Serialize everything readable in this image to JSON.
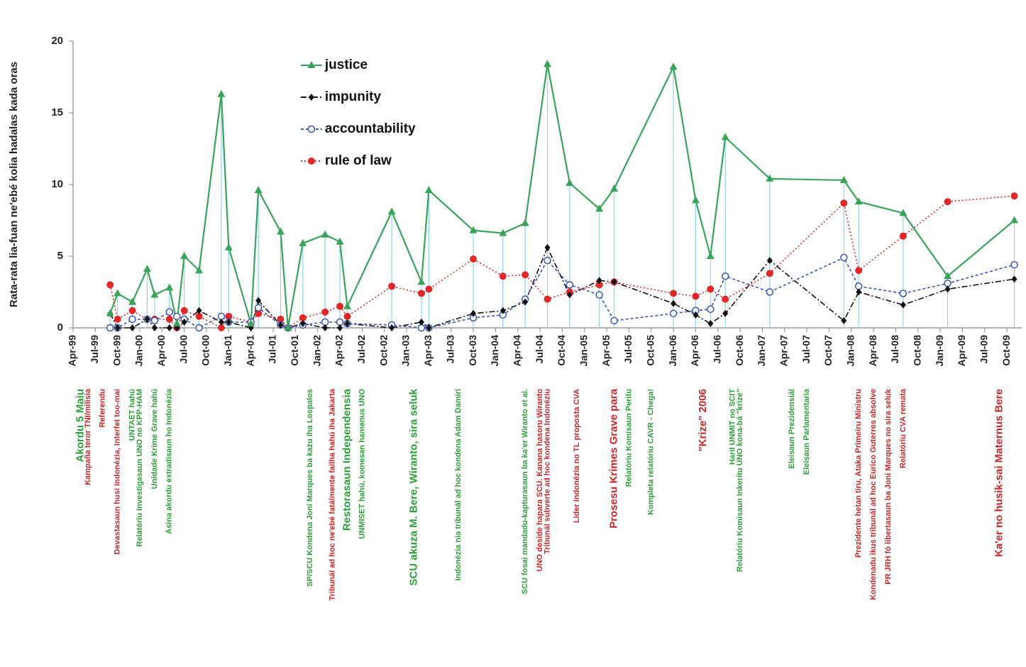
{
  "chart_data": {
    "type": "line",
    "y_label": "Rata-rata lia-fuan ne'ebé kolia hadalas kada oras",
    "x": [
      "Sep-99",
      "Oct-99",
      "Dec-99",
      "Feb-00",
      "Mar-00",
      "May-00",
      "Jun-00",
      "Jul-00",
      "Sep-00",
      "Dec-00",
      "Jan-01",
      "Apr-01",
      "May-01",
      "Aug-01",
      "Sep-01",
      "Nov-01",
      "Feb-02",
      "Apr-02",
      "May-02",
      "Nov-02",
      "Mar-03",
      "Apr-03",
      "Oct-03",
      "Feb-04",
      "May-04",
      "Aug-04",
      "Nov-04",
      "Mar-05",
      "May-05",
      "Jan-06",
      "Apr-06",
      "Jun-06",
      "Aug-06",
      "Feb-07",
      "Dec-07",
      "Feb-08",
      "Aug-08",
      "Feb-09",
      "Nov-09"
    ],
    "xlim": [
      "Apr-99",
      "Dec-09"
    ],
    "xticks": [
      "Apr-99",
      "Jul-99",
      "Oct-99",
      "Jan-00",
      "Apr-00",
      "Jul-00",
      "Oct-00",
      "Jan-01",
      "Apr-01",
      "Jul-01",
      "Oct-01",
      "Jan-02",
      "Apr-02",
      "Jul-02",
      "Oct-02",
      "Jan-03",
      "Apr-03",
      "Jul-03",
      "Oct-03",
      "Jan-04",
      "Apr-04",
      "Jul-04",
      "Oct-04",
      "Jan-05",
      "Apr-05",
      "Jul-05",
      "Oct-05",
      "Jan-06",
      "Apr-06",
      "Jul-06",
      "Oct-06",
      "Jan-07",
      "Apr-07",
      "Jul-07",
      "Oct-07",
      "Jan-08",
      "Apr-08",
      "Jul-08",
      "Oct-08",
      "Jan-09",
      "Apr-09",
      "Jul-09",
      "Oct-09"
    ],
    "ylim": [
      0,
      20
    ],
    "yticks": [
      0,
      5,
      10,
      15,
      20
    ],
    "legend": "top",
    "drop_lines": {
      "series": "justice",
      "color": "#8fd3ea"
    },
    "series": [
      {
        "name": "justice",
        "color": "#3aa35b",
        "marker": "triangle",
        "dash": "none",
        "values": [
          1.0,
          2.4,
          1.8,
          4.1,
          2.3,
          2.8,
          0.3,
          5.0,
          4.0,
          16.3,
          5.6,
          0.3,
          9.6,
          6.7,
          0,
          5.9,
          6.5,
          6.0,
          1.5,
          8.1,
          3.2,
          9.6,
          6.8,
          6.6,
          7.3,
          18.4,
          10.1,
          8.3,
          9.7,
          18.2,
          8.9,
          5.0,
          13.3,
          10.4,
          10.3,
          8.8,
          8.0,
          3.6,
          7.5
        ]
      },
      {
        "name": "impunity",
        "color": "#111111",
        "marker": "diamond",
        "dash": "8 3 2 3",
        "values": [
          1.0,
          0,
          0,
          0.6,
          0,
          0,
          0,
          0.4,
          1.2,
          0.4,
          0.4,
          0,
          1.9,
          0.2,
          0,
          0.3,
          0,
          0,
          0.3,
          0,
          0.4,
          0,
          1.0,
          1.2,
          1.8,
          5.6,
          2.3,
          3.3,
          3.2,
          1.7,
          0.9,
          0.3,
          1.0,
          4.7,
          0.5,
          2.5,
          1.6,
          2.7,
          3.4
        ]
      },
      {
        "name": "accountability",
        "color": "#3a55b4",
        "marker": "open-circle",
        "dash": "4 3",
        "values": [
          0,
          0,
          0.6,
          0.6,
          0.5,
          1.1,
          0.8,
          0.6,
          0,
          0.8,
          0.4,
          0.4,
          1.4,
          0.2,
          0,
          0.2,
          0.4,
          0.4,
          0.3,
          0.2,
          0,
          0,
          0.7,
          0.9,
          2.0,
          4.7,
          3.0,
          2.3,
          0.5,
          1.0,
          1.2,
          1.3,
          3.6,
          2.5,
          4.9,
          2.9,
          2.4,
          3.1,
          4.4
        ]
      },
      {
        "name": "rule of law",
        "color": "#e02828",
        "marker": "circle",
        "dash": "2 3",
        "values": [
          3.0,
          0.6,
          1.2,
          0.6,
          0.6,
          0.6,
          0,
          1.2,
          0.8,
          0,
          0.8,
          0.4,
          1.0,
          0.6,
          0,
          0.7,
          1.1,
          1.5,
          0.8,
          2.9,
          2.4,
          2.7,
          4.8,
          3.6,
          3.7,
          2.0,
          2.5,
          3.0,
          3.2,
          2.4,
          2.2,
          2.7,
          2.0,
          3.8,
          8.7,
          4.0,
          6.4,
          8.8,
          9.2
        ]
      }
    ],
    "annotations": [
      {
        "text": "Akordu 5 Maiu",
        "x": "May-99",
        "color": "#2e9e3a"
      },
      {
        "text": "Kampaña teror TNI/milisia",
        "x": "Jun-99",
        "color": "#c8282a"
      },
      {
        "text": "Referendu",
        "x": "Aug-99",
        "color": "#c8282a"
      },
      {
        "text": "Devastasaun husi Indonézia, Interfet too-mai",
        "x": "Oct-99",
        "color": "#c8282a"
      },
      {
        "text": "UNTAET hahú",
        "x": "Dec-99",
        "color": "#2e9e3a"
      },
      {
        "text": "Relatóriu Investigasaun UNO no KPP-HAM",
        "x": "Jan-00",
        "color": "#2e9e3a"
      },
      {
        "text": "Unidade Krime Grave hahú",
        "x": "Mar-00",
        "color": "#2e9e3a"
      },
      {
        "text": "Asina akordu extradisaun ho Indonézia",
        "x": "May-00",
        "color": "#2e9e3a"
      },
      {
        "text": "SP/SCU Kondena Joni Marques ba kazu iha Lospalos",
        "x": "Dec-01",
        "color": "#2e9e3a"
      },
      {
        "text": "Tribunál ad hoc ne'ebé fatálmente failha hahú iha Jakarta",
        "x": "Mar-02",
        "color": "#c8282a"
      },
      {
        "text": "Restorasaun Independensia",
        "x": "May-02",
        "color": "#2e9e3a"
      },
      {
        "text": "UNMISET hahú, komesan hamenus UNO",
        "x": "Jul-02",
        "color": "#2e9e3a"
      },
      {
        "text": "SCU akuza M. Bere, Wiranto, sira seluk",
        "x": "Feb-03",
        "color": "#2e9e3a"
      },
      {
        "text": "Indonézia nia tribunál ad hoc kondena Adam Damiri",
        "x": "Aug-03",
        "color": "#2e9e3a"
      },
      {
        "text": "SCU fosai mandadu-kapturasaun ba ka'er Wiranto et al.",
        "x": "May-04",
        "color": "#2e9e3a"
      },
      {
        "text": "UNO deside hapara SCU. Kanana hasoru Wiranto",
        "x": "Jul-04",
        "color": "#c8282a"
      },
      {
        "text": "Tribunál subverte ad hoc kondena Indonéziu",
        "x": "Aug-04",
        "color": "#c8282a"
      },
      {
        "text": "Lider Indonézia no TL proposta CVA",
        "x": "Dec-04",
        "color": "#c8282a"
      },
      {
        "text": "Prosesu Krimes Grave para",
        "x": "May-05",
        "color": "#c8282a"
      },
      {
        "text": "Relatóriu Komisaun Peritu",
        "x": "Jul-05",
        "color": "#2e9e3a"
      },
      {
        "text": "Kompleta relatóriu CAVR - Chega!",
        "x": "Oct-05",
        "color": "#2e9e3a"
      },
      {
        "text": "\"Krize\" 2006",
        "x": "May-06",
        "color": "#c8282a"
      },
      {
        "text": "Haril UNMIT no SCIT",
        "x": "Sep-06",
        "color": "#2e9e3a"
      },
      {
        "text": "Relatóriu Komisaun Inkeritu UNO kona-bá \"krize\"",
        "x": "Oct-06",
        "color": "#2e9e3a"
      },
      {
        "text": "Eleisaun Prezidensiál",
        "x": "May-07",
        "color": "#2e9e3a"
      },
      {
        "text": "Eleisaun Parlamentaria",
        "x": "Jul-07",
        "color": "#2e9e3a"
      },
      {
        "text": "Prezidente hetan tiru, Ataka Primeiru Ministru",
        "x": "Feb-08",
        "color": "#c8282a"
      },
      {
        "text": "Kondenadu ikus tribunál ad hoc Eurico Guterres absolve",
        "x": "Apr-08",
        "color": "#c8282a"
      },
      {
        "text": "PR JRH fó libertasaun ba Joni Marques no sira seluk",
        "x": "Jun-08",
        "color": "#c8282a"
      },
      {
        "text": "Relatóriu CVA remata",
        "x": "Aug-08",
        "color": "#c8282a"
      },
      {
        "text": "Ka'er no husik-sai Maternus Bere",
        "x": "Sep-09",
        "color": "#c8282a"
      }
    ]
  }
}
